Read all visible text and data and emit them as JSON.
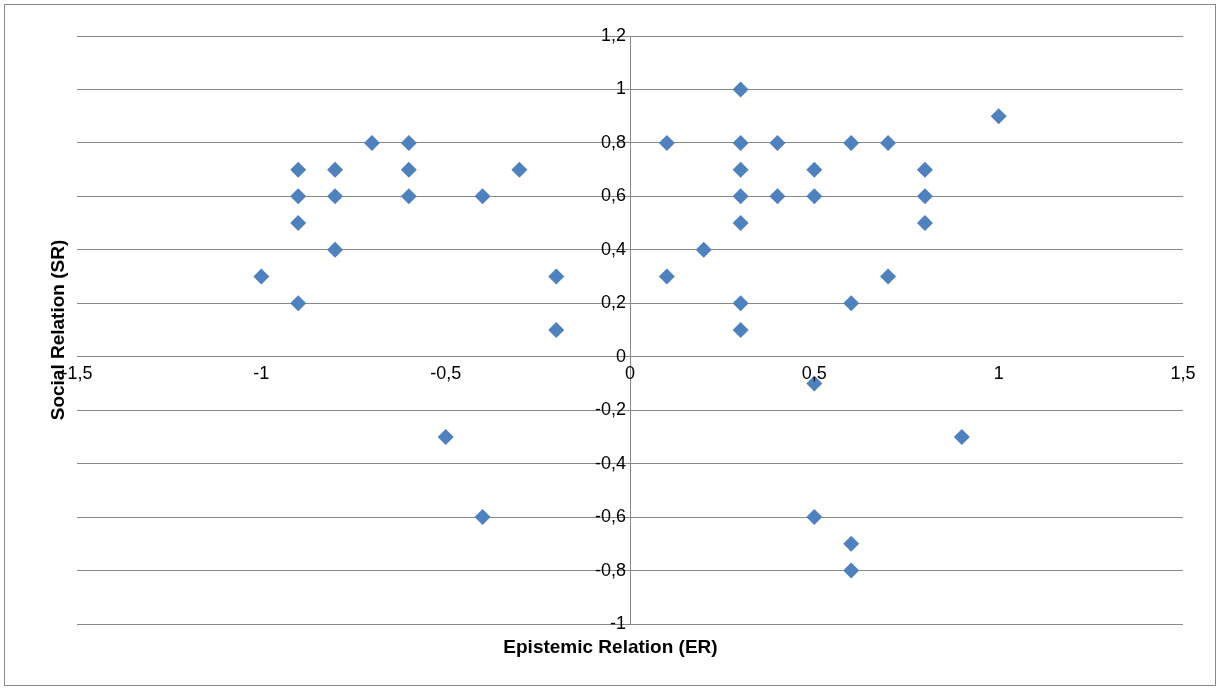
{
  "chart_data": {
    "type": "scatter",
    "xlabel": "Epistemic Relation (ER)",
    "ylabel": "Social Relation (SR)",
    "xlim": [
      -1.5,
      1.5
    ],
    "ylim": [
      -1,
      1.2
    ],
    "xticks": [
      {
        "value": -1.5,
        "label": "-1,5"
      },
      -1,
      {
        "value": -0.5,
        "label": "-0,5"
      },
      0,
      {
        "value": 0.5,
        "label": "0,5"
      },
      1,
      {
        "value": 1.5,
        "label": "1,5"
      }
    ],
    "yticks": [
      -1,
      {
        "value": -0.8,
        "label": "-0,8"
      },
      {
        "value": -0.6,
        "label": "-0,6"
      },
      {
        "value": -0.4,
        "label": "-0,4"
      },
      {
        "value": -0.2,
        "label": "-0,2"
      },
      0,
      {
        "value": 0.2,
        "label": "0,2"
      },
      {
        "value": 0.4,
        "label": "0,4"
      },
      {
        "value": 0.6,
        "label": "0,6"
      },
      {
        "value": 0.8,
        "label": "0,8"
      },
      1,
      {
        "value": 1.2,
        "label": "1,2"
      }
    ],
    "grid": "y",
    "marker": "diamond",
    "legend": false,
    "series": [
      {
        "color": "#4f81bd",
        "x": [
          -1,
          -0.9,
          -0.9,
          -0.9,
          -0.9,
          -0.8,
          -0.8,
          -0.8,
          -0.7,
          -0.6,
          -0.6,
          -0.6,
          -0.4,
          -0.3,
          -0.2,
          -0.2,
          -0.5,
          -0.4,
          0.1,
          0.1,
          0.2,
          0.3,
          0.3,
          0.3,
          0.3,
          0.3,
          0.3,
          0.3,
          0.4,
          0.4,
          0.5,
          0.5,
          0.5,
          0.5,
          0.6,
          0.6,
          0.6,
          0.6,
          0.7,
          0.7,
          0.8,
          0.8,
          0.8,
          0.9,
          1
        ],
        "values": [
          0.3,
          0.7,
          0.6,
          0.5,
          0.2,
          0.7,
          0.6,
          0.4,
          0.8,
          0.8,
          0.7,
          0.6,
          0.6,
          0.7,
          0.3,
          0.1,
          -0.3,
          -0.6,
          0.8,
          0.3,
          0.4,
          1,
          0.8,
          0.7,
          0.6,
          0.5,
          0.2,
          0.1,
          0.8,
          0.6,
          0.7,
          0.6,
          -0.1,
          -0.6,
          0.8,
          0.2,
          -0.7,
          -0.8,
          0.8,
          0.3,
          0.7,
          0.6,
          0.5,
          -0.3,
          0.9
        ]
      }
    ]
  }
}
